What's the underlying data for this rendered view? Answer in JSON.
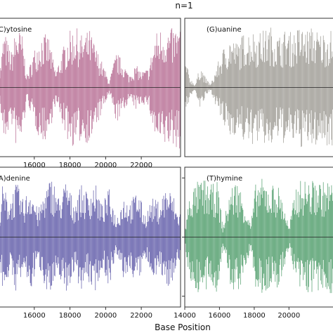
{
  "title": "n=1",
  "xlabel": "Base Position",
  "chart_data": [
    {
      "type": "bar",
      "title": "(C)ytosine",
      "color": "#a8507e",
      "x_ticks": [
        16000,
        18000,
        20000,
        22000
      ],
      "envelope": [
        [
          14000,
          0.05
        ],
        [
          14300,
          0.9
        ],
        [
          14700,
          0.55
        ],
        [
          15000,
          0.95
        ],
        [
          15300,
          0.85
        ],
        [
          15600,
          0.2
        ],
        [
          16000,
          0.6
        ],
        [
          16400,
          0.85
        ],
        [
          16800,
          0.8
        ],
        [
          17200,
          0.25
        ],
        [
          17600,
          0.6
        ],
        [
          17900,
          0.85
        ],
        [
          18300,
          0.95
        ],
        [
          18700,
          0.8
        ],
        [
          19100,
          0.9
        ],
        [
          19500,
          0.6
        ],
        [
          19800,
          0.4
        ],
        [
          20200,
          0.1
        ],
        [
          20600,
          0.55
        ],
        [
          21000,
          0.4
        ],
        [
          21300,
          0.2
        ],
        [
          21700,
          0.35
        ],
        [
          22000,
          0.25
        ],
        [
          22400,
          0.3
        ],
        [
          22800,
          0.85
        ],
        [
          23200,
          0.95
        ],
        [
          23600,
          0.9
        ],
        [
          24000,
          0.95
        ]
      ]
    },
    {
      "type": "bar",
      "title": "(G)uanine",
      "color": "#8b877f",
      "x_ticks": [],
      "envelope": [
        [
          14000,
          0.5
        ],
        [
          14300,
          0.15
        ],
        [
          14600,
          0.05
        ],
        [
          14900,
          0.35
        ],
        [
          15200,
          0.15
        ],
        [
          15500,
          0.05
        ],
        [
          15800,
          0.3
        ],
        [
          16200,
          0.6
        ],
        [
          16600,
          0.8
        ],
        [
          17000,
          0.7
        ],
        [
          17400,
          0.85
        ],
        [
          17800,
          0.9
        ],
        [
          18200,
          0.85
        ],
        [
          18600,
          0.9
        ],
        [
          19000,
          0.95
        ],
        [
          19400,
          0.8
        ],
        [
          19800,
          0.9
        ],
        [
          20200,
          0.85
        ],
        [
          20600,
          0.95
        ],
        [
          21000,
          0.9
        ],
        [
          21400,
          0.95
        ],
        [
          21800,
          0.85
        ],
        [
          22200,
          0.9
        ],
        [
          22600,
          0.9
        ]
      ]
    },
    {
      "type": "bar",
      "title": "(A)denine",
      "color": "#3f3a97",
      "x_ticks": [
        16000,
        18000,
        20000,
        22000
      ],
      "envelope": [
        [
          14000,
          0.3
        ],
        [
          14200,
          0.8
        ],
        [
          14600,
          0.6
        ],
        [
          15000,
          0.85
        ],
        [
          15400,
          0.55
        ],
        [
          15800,
          0.85
        ],
        [
          16200,
          0.4
        ],
        [
          16600,
          0.75
        ],
        [
          17000,
          0.95
        ],
        [
          17400,
          0.6
        ],
        [
          17800,
          0.9
        ],
        [
          18200,
          0.55
        ],
        [
          18600,
          0.8
        ],
        [
          19000,
          0.7
        ],
        [
          19400,
          0.85
        ],
        [
          19800,
          0.5
        ],
        [
          20200,
          0.75
        ],
        [
          20600,
          0.3
        ],
        [
          21000,
          0.65
        ],
        [
          21400,
          0.55
        ],
        [
          21800,
          0.75
        ],
        [
          22200,
          0.35
        ],
        [
          22600,
          0.6
        ],
        [
          23000,
          0.55
        ],
        [
          23400,
          0.8
        ],
        [
          23800,
          0.65
        ],
        [
          24000,
          0.4
        ]
      ]
    },
    {
      "type": "bar",
      "title": "(T)hymine",
      "color": "#2d8a4d",
      "x_ticks": [
        14000,
        16000,
        18000,
        20000
      ],
      "envelope": [
        [
          14000,
          0.1
        ],
        [
          14300,
          0.7
        ],
        [
          14700,
          0.85
        ],
        [
          15100,
          0.9
        ],
        [
          15500,
          0.8
        ],
        [
          15900,
          0.85
        ],
        [
          16200,
          0.15
        ],
        [
          16600,
          0.75
        ],
        [
          17000,
          0.9
        ],
        [
          17400,
          0.6
        ],
        [
          17800,
          0.2
        ],
        [
          18100,
          0.85
        ],
        [
          18500,
          0.9
        ],
        [
          18900,
          0.8
        ],
        [
          19300,
          0.85
        ],
        [
          19700,
          0.55
        ],
        [
          20000,
          0.15
        ],
        [
          20400,
          0.8
        ],
        [
          20800,
          0.9
        ],
        [
          21200,
          0.85
        ],
        [
          21600,
          0.9
        ],
        [
          22000,
          0.85
        ],
        [
          22600,
          0.9
        ]
      ]
    }
  ]
}
